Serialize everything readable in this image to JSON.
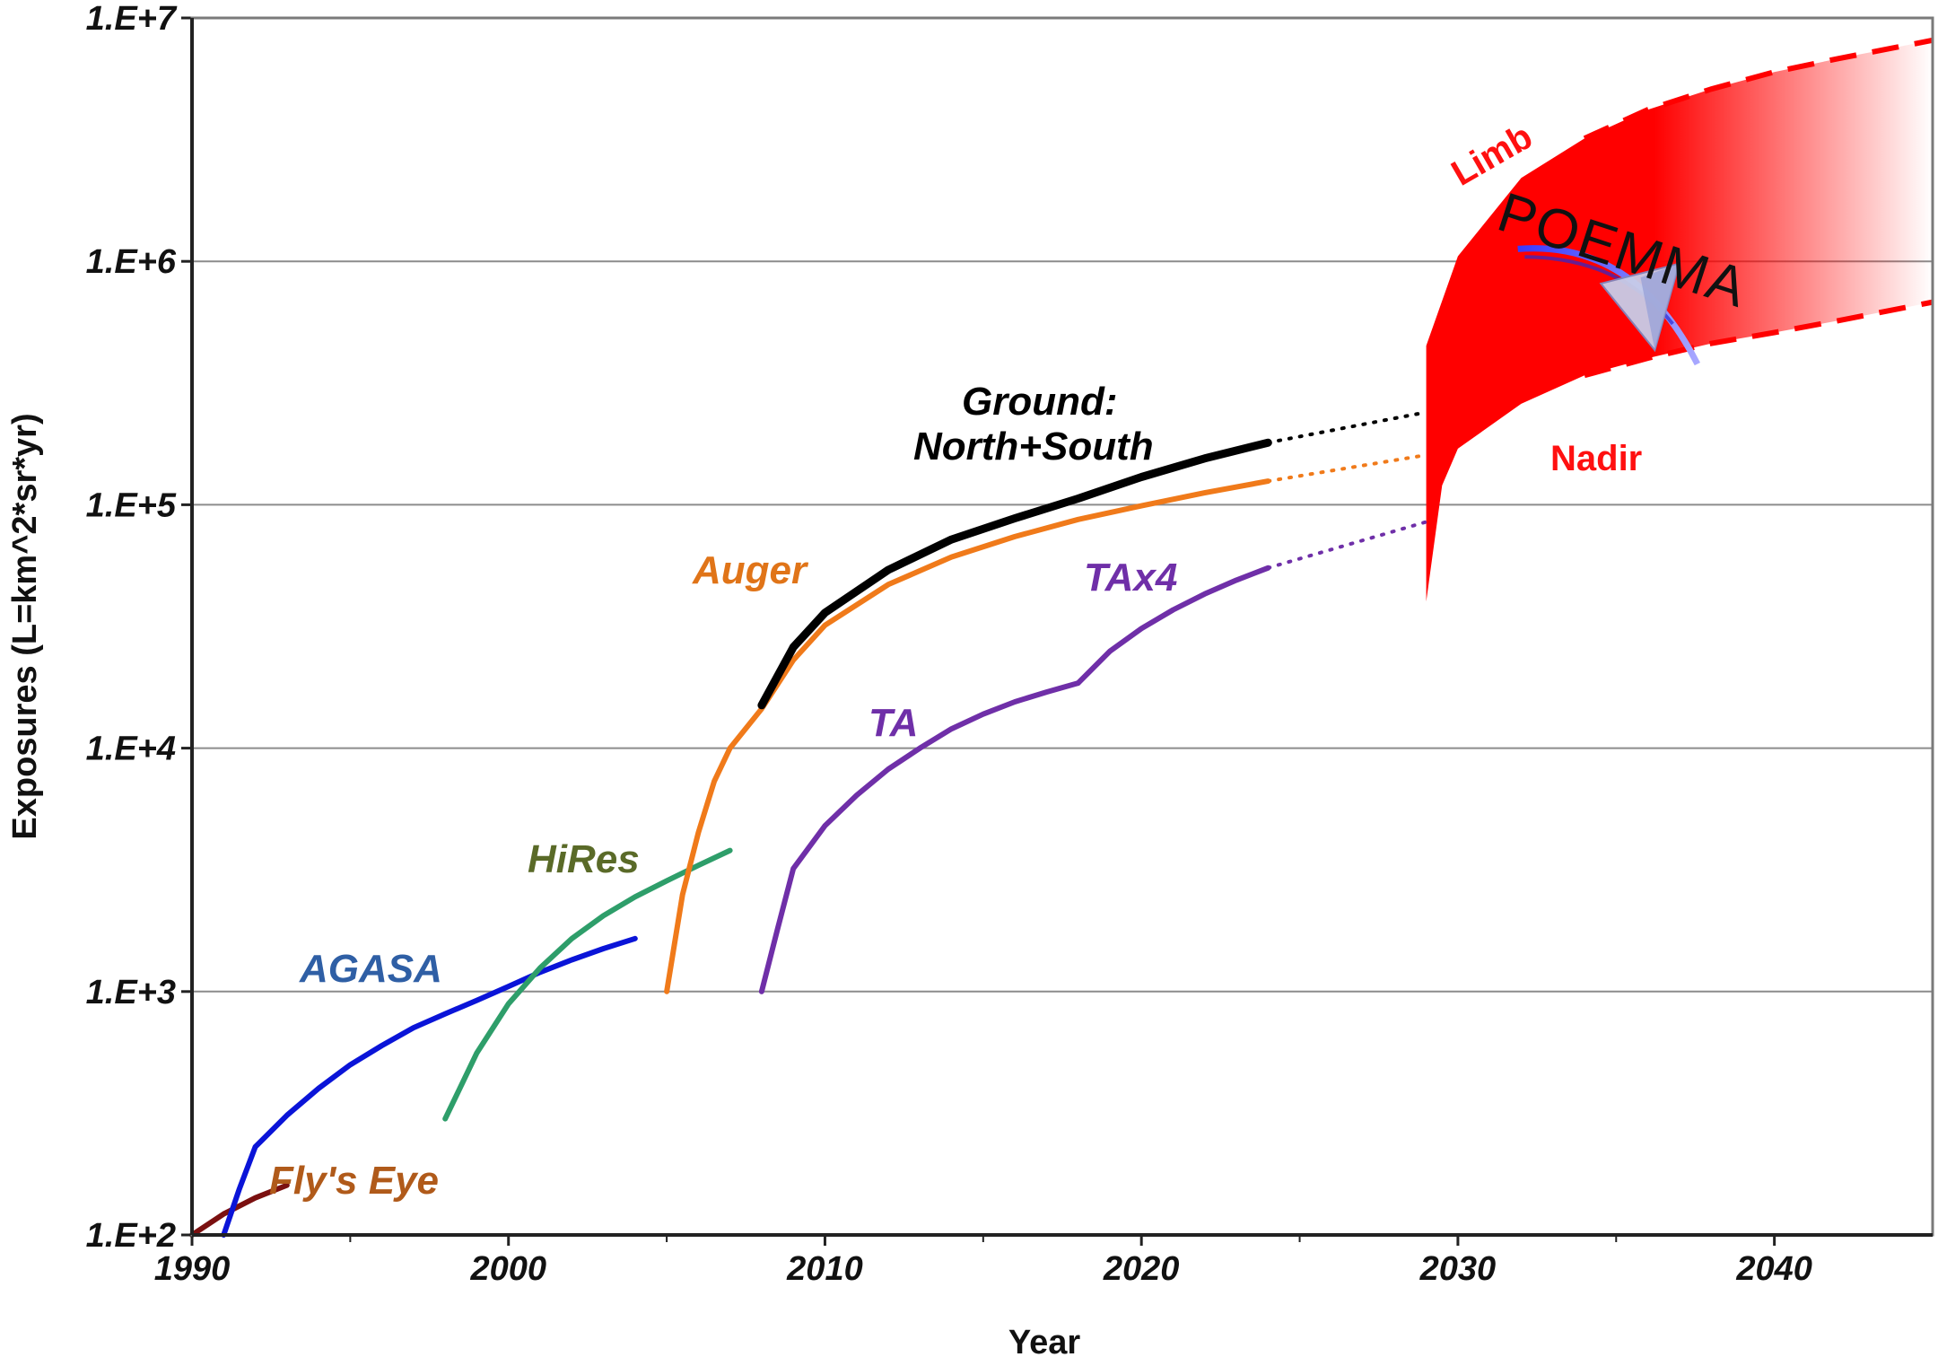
{
  "chart_data": {
    "type": "line",
    "title": "",
    "xlabel": "Year",
    "ylabel": "Exposures (L=km^2*sr*yr)",
    "xlim": [
      1990,
      2045
    ],
    "ylim": [
      100,
      10000000
    ],
    "yscale": "log",
    "x_ticks": [
      1990,
      2000,
      2010,
      2020,
      2030,
      2040
    ],
    "x_tick_labels": [
      "1990",
      "2000",
      "2010",
      "2020",
      "2030",
      "2040"
    ],
    "y_ticks": [
      100,
      1000,
      10000,
      100000,
      1000000,
      10000000
    ],
    "y_tick_labels": [
      "1.E+2",
      "1.E+3",
      "1.E+4",
      "1.E+5",
      "1.E+6",
      "1.E+7"
    ],
    "grid": "horizontal",
    "series": [
      {
        "name": "Fly's Eye",
        "label": "Fly's Eye",
        "color": "#7b1010",
        "label_color": "#b05a1a",
        "x": [
          1990,
          1991,
          1992,
          1993
        ],
        "y": [
          100,
          122,
          142,
          160
        ]
      },
      {
        "name": "AGASA",
        "label": "AGASA",
        "color": "#0a14d8",
        "label_color": "#2f5fa5",
        "x": [
          1991,
          1991.5,
          1992,
          1993,
          1994,
          1995,
          1996,
          1997,
          1998,
          1999,
          2000,
          2001,
          2002,
          2003,
          2004
        ],
        "y": [
          100,
          155,
          230,
          310,
          400,
          500,
          600,
          710,
          810,
          920,
          1050,
          1200,
          1350,
          1500,
          1650
        ]
      },
      {
        "name": "HiRes",
        "label": "HiRes",
        "color": "#2e9e6a",
        "label_color": "#5a6a28",
        "x": [
          1998,
          1999,
          2000,
          2001,
          2002,
          2003,
          2004,
          2005,
          2006,
          2007
        ],
        "y": [
          300,
          560,
          890,
          1250,
          1650,
          2050,
          2450,
          2850,
          3300,
          3800
        ]
      },
      {
        "name": "Auger",
        "label": "Auger",
        "color": "#f07a1a",
        "label_color": "#e07418",
        "x": [
          2005,
          2005.5,
          2006,
          2006.5,
          2007,
          2008,
          2009,
          2010,
          2012,
          2014,
          2016,
          2018,
          2020,
          2022,
          2024
        ],
        "y": [
          1000,
          2500,
          4500,
          7300,
          10000,
          14500,
          23000,
          32000,
          47000,
          61000,
          74000,
          87000,
          99000,
          112000,
          125000
        ]
      },
      {
        "name": "Auger projection",
        "color": "#f07a1a",
        "dotted": true,
        "x": [
          2024,
          2029
        ],
        "y": [
          125000,
          160000
        ]
      },
      {
        "name": "TA",
        "label": "TA",
        "color": "#6f2fa8",
        "label_color": "#6f2fa8",
        "x": [
          2008,
          2008.5,
          2009,
          2010,
          2011,
          2012,
          2013,
          2014,
          2015,
          2016,
          2017,
          2018
        ],
        "y": [
          1000,
          1800,
          3200,
          4800,
          6400,
          8200,
          10000,
          12000,
          13800,
          15500,
          17000,
          18500
        ]
      },
      {
        "name": "TAx4",
        "label": "TAx4",
        "color": "#6f2fa8",
        "label_color": "#6f2fa8",
        "x": [
          2018,
          2019,
          2020,
          2021,
          2022,
          2023,
          2024
        ],
        "y": [
          18500,
          25000,
          31000,
          37000,
          43000,
          49000,
          55000
        ]
      },
      {
        "name": "TAx4 projection",
        "color": "#6f2fa8",
        "dotted": true,
        "x": [
          2024,
          2029
        ],
        "y": [
          55000,
          85000
        ]
      },
      {
        "name": "Ground: North+South",
        "label": "Ground:\nNorth+South",
        "color": "#000000",
        "label_color": "#000000",
        "x": [
          2008,
          2009,
          2010,
          2012,
          2014,
          2016,
          2018,
          2020,
          2022,
          2024
        ],
        "y": [
          15000,
          26000,
          36000,
          54000,
          72000,
          88000,
          106000,
          130000,
          155000,
          180000
        ]
      },
      {
        "name": "Ground projection",
        "color": "#000000",
        "dotted": true,
        "x": [
          2024,
          2029
        ],
        "y": [
          180000,
          240000
        ]
      }
    ],
    "band": {
      "name": "POEMMA",
      "color": "#ff0000",
      "upper_label": "Limb",
      "lower_label": "Nadir",
      "upper": {
        "x": [
          2029,
          2030,
          2032,
          2034,
          2036,
          2038,
          2040,
          2042,
          2045
        ],
        "y": [
          450000,
          1050000,
          2200000,
          3200000,
          4200000,
          5100000,
          6000000,
          6800000,
          8100000
        ]
      },
      "lower": {
        "x": [
          2029,
          2029.5,
          2030,
          2032,
          2034,
          2036,
          2038,
          2040,
          2042,
          2045
        ],
        "y": [
          40000,
          120000,
          170000,
          260000,
          340000,
          400000,
          460000,
          510000,
          570000,
          680000
        ]
      },
      "solid_until": 2034
    },
    "annotations": [
      {
        "text": "Fly's Eye"
      },
      {
        "text": "AGASA"
      },
      {
        "text": "HiRes"
      },
      {
        "text": "Auger"
      },
      {
        "text": "TA"
      },
      {
        "text": "TAx4"
      },
      {
        "text": "Ground:"
      },
      {
        "text": "North+South"
      },
      {
        "text": "Limb"
      },
      {
        "text": "Nadir"
      },
      {
        "text": "POEMMA"
      }
    ]
  },
  "labels": {
    "flys_eye": "Fly's Eye",
    "agasa": "AGASA",
    "hires": "HiRes",
    "auger": "Auger",
    "ta": "TA",
    "tax4": "TAx4",
    "ground_1": "Ground:",
    "ground_2": "North+South",
    "limb": "Limb",
    "nadir": "Nadir",
    "poemma": "POEMMA"
  }
}
